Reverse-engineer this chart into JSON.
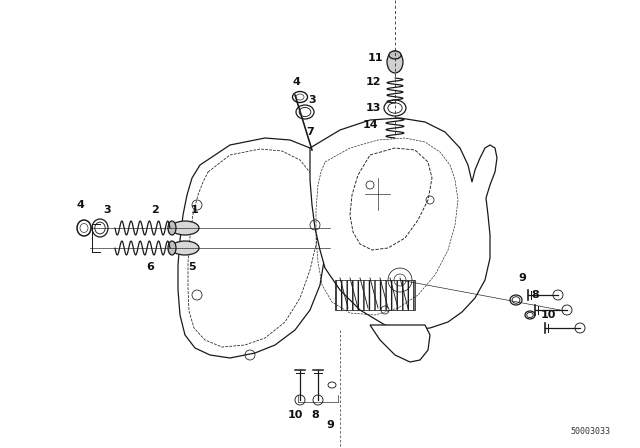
{
  "bg_color": "#ffffff",
  "line_color": "#1a1a1a",
  "watermark": "50003033",
  "fig_width": 6.4,
  "fig_height": 4.48,
  "dpi": 100,
  "xlim": [
    0,
    640
  ],
  "ylim": [
    0,
    448
  ]
}
